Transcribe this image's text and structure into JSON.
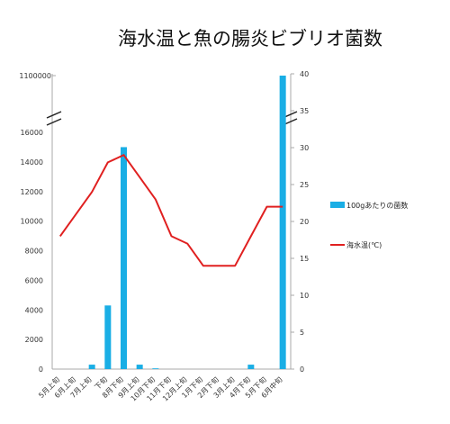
{
  "chart_data": {
    "type": "bar+line",
    "title": "海水温と魚の腸炎ビブリオ菌数",
    "categories": [
      "5月上旬",
      "6月上旬",
      "7月上旬",
      "下旬",
      "8月下旬",
      "9月上旬",
      "10月下旬",
      "11月下旬",
      "12月上旬",
      "1月下旬",
      "2月下旬",
      "3月上旬",
      "4月下旬",
      "5月下旬",
      "6月中旬"
    ],
    "left_axis": {
      "ticks": [
        0,
        2000,
        4000,
        6000,
        8000,
        10000,
        12000,
        14000,
        16000
      ],
      "break_tick": 1100000,
      "range": [
        0,
        16000
      ],
      "break_top": 1100000
    },
    "right_axis": {
      "ticks": [
        0,
        5,
        10,
        15,
        20,
        25,
        30,
        35,
        40
      ],
      "range": [
        0,
        40
      ]
    },
    "series": [
      {
        "name": "100gあたりの菌数",
        "type": "bar",
        "axis": "left",
        "color": "#1aaee5",
        "values": [
          0,
          0,
          300,
          4300,
          15000,
          300,
          50,
          0,
          0,
          0,
          0,
          0,
          300,
          0,
          1100000
        ]
      },
      {
        "name": "海水温(℃)",
        "type": "line",
        "axis": "right",
        "color": "#e02020",
        "values": [
          18,
          21,
          24,
          28,
          29,
          26,
          23,
          18,
          17,
          14,
          14,
          14,
          18,
          22,
          22
        ]
      }
    ],
    "legend": {
      "position": "right",
      "items": [
        "100gあたりの菌数",
        "海水温(℃)"
      ]
    },
    "grid": false
  }
}
